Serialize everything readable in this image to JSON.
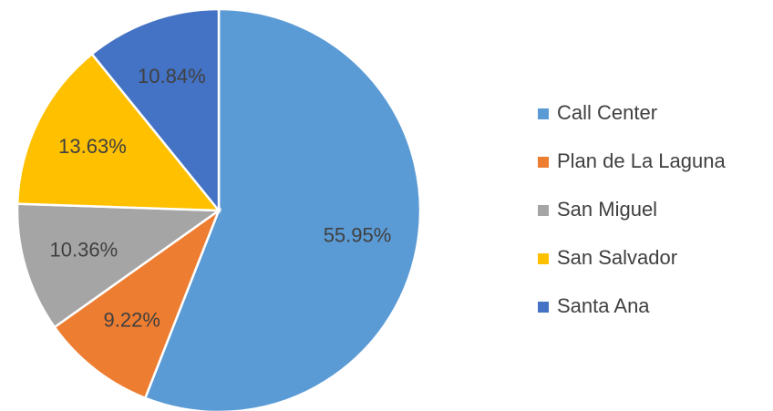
{
  "chart_data": {
    "type": "pie",
    "categories": [
      "Call Center",
      "Plan de La Laguna",
      "San Miguel",
      "San Salvador",
      "Santa Ana"
    ],
    "values": [
      55.95,
      9.22,
      10.36,
      13.63,
      10.84
    ],
    "value_labels": [
      "55.95%",
      "9.22%",
      "10.36%",
      "13.63%",
      "10.84%"
    ],
    "colors": [
      "#5b9bd5",
      "#ed7d31",
      "#a5a5a5",
      "#ffc000",
      "#4472c4"
    ],
    "legend": "right"
  }
}
